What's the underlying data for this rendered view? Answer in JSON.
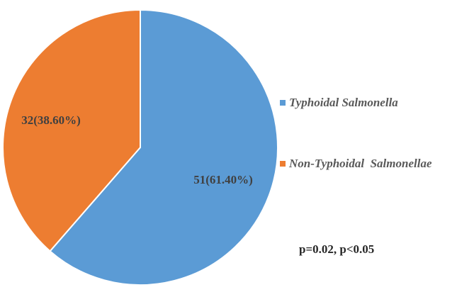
{
  "chart_data": {
    "type": "pie",
    "slices": [
      {
        "category": "Typhoidal Salmonella",
        "count": 51,
        "percent": 61.4,
        "label": "51(61.40%)",
        "color": "#5B9BD5"
      },
      {
        "category": "Non-Typhoidal  Salmonellae",
        "count": 32,
        "percent": 38.6,
        "label": "32(38.60%)",
        "color": "#ED7D31"
      }
    ],
    "legend": {
      "placement": "right",
      "entries": [
        {
          "label": "Typhoidal Salmonella",
          "color": "#5B9BD5"
        },
        {
          "label": "Non-Typhoidal  Salmonellae",
          "color": "#ED7D31"
        }
      ]
    },
    "annotation": "p=0.02, p<0.05"
  }
}
